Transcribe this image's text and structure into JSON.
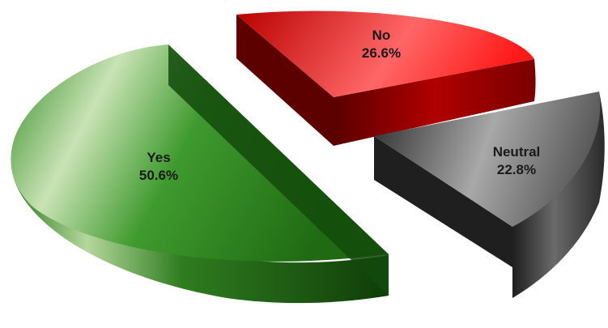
{
  "chart_data": {
    "type": "pie",
    "style": "3d-exploded",
    "slices": [
      {
        "label": "Yes",
        "value": 50.6,
        "display": "50.6%",
        "color": "#2e7d1f"
      },
      {
        "label": "No",
        "value": 26.6,
        "display": "26.6%",
        "color": "#d40000"
      },
      {
        "label": "Neutral",
        "value": 22.8,
        "display": "22.8%",
        "color": "#4a4a4a"
      }
    ],
    "legend": "none"
  }
}
